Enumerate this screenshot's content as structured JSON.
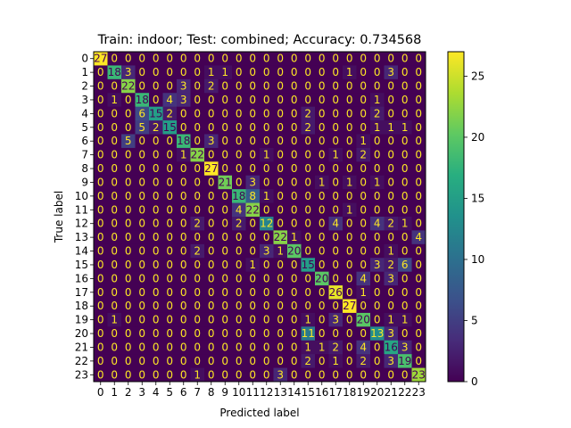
{
  "chart_data": {
    "type": "heatmap",
    "title": "Train: indoor; Test: combined; Accuracy: 0.734568",
    "xlabel": "Predicted label",
    "ylabel": "True label",
    "x_tick_labels": [
      "0",
      "1",
      "2",
      "3",
      "4",
      "5",
      "6",
      "7",
      "8",
      "9",
      "10",
      "11",
      "12",
      "13",
      "14",
      "15",
      "16",
      "17",
      "18",
      "19",
      "20",
      "21",
      "22",
      "23"
    ],
    "y_tick_labels": [
      "0",
      "1",
      "2",
      "3",
      "4",
      "5",
      "6",
      "7",
      "8",
      "9",
      "10",
      "11",
      "12",
      "13",
      "14",
      "15",
      "16",
      "17",
      "18",
      "19",
      "20",
      "21",
      "22",
      "23"
    ],
    "colormap": "viridis",
    "colorbar": {
      "min": 0,
      "max": 27,
      "ticks": [
        0,
        5,
        10,
        15,
        20,
        25
      ]
    },
    "matrix": [
      [
        27,
        0,
        0,
        0,
        0,
        0,
        0,
        0,
        0,
        0,
        0,
        0,
        0,
        0,
        0,
        0,
        0,
        0,
        0,
        0,
        0,
        0,
        0,
        0
      ],
      [
        0,
        18,
        3,
        0,
        0,
        0,
        0,
        0,
        1,
        1,
        0,
        0,
        0,
        0,
        0,
        0,
        0,
        0,
        1,
        0,
        0,
        3,
        0,
        0
      ],
      [
        0,
        0,
        22,
        0,
        0,
        0,
        3,
        0,
        2,
        0,
        0,
        0,
        0,
        0,
        0,
        0,
        0,
        0,
        0,
        0,
        0,
        0,
        0,
        0
      ],
      [
        0,
        1,
        0,
        18,
        0,
        4,
        3,
        0,
        0,
        0,
        0,
        0,
        0,
        0,
        0,
        0,
        0,
        0,
        0,
        0,
        1,
        0,
        0,
        0
      ],
      [
        0,
        0,
        0,
        6,
        15,
        2,
        0,
        0,
        0,
        0,
        0,
        0,
        0,
        0,
        0,
        2,
        0,
        0,
        0,
        0,
        2,
        0,
        0,
        0
      ],
      [
        0,
        0,
        0,
        5,
        2,
        15,
        0,
        0,
        0,
        0,
        0,
        0,
        0,
        0,
        0,
        2,
        0,
        0,
        0,
        0,
        1,
        1,
        1,
        0
      ],
      [
        0,
        0,
        5,
        0,
        0,
        0,
        18,
        0,
        3,
        0,
        0,
        0,
        0,
        0,
        0,
        0,
        0,
        0,
        0,
        1,
        0,
        0,
        0,
        0
      ],
      [
        0,
        0,
        0,
        0,
        0,
        0,
        1,
        22,
        0,
        0,
        0,
        0,
        1,
        0,
        0,
        0,
        0,
        1,
        0,
        2,
        0,
        0,
        0,
        0
      ],
      [
        0,
        0,
        0,
        0,
        0,
        0,
        0,
        0,
        27,
        0,
        0,
        0,
        0,
        0,
        0,
        0,
        0,
        0,
        0,
        0,
        0,
        0,
        0,
        0
      ],
      [
        0,
        0,
        0,
        0,
        0,
        0,
        0,
        0,
        0,
        21,
        0,
        3,
        0,
        0,
        0,
        0,
        1,
        0,
        1,
        0,
        1,
        0,
        0,
        0
      ],
      [
        0,
        0,
        0,
        0,
        0,
        0,
        0,
        0,
        0,
        0,
        18,
        8,
        1,
        0,
        0,
        0,
        0,
        0,
        0,
        0,
        0,
        0,
        0,
        0
      ],
      [
        0,
        0,
        0,
        0,
        0,
        0,
        0,
        0,
        0,
        0,
        4,
        22,
        0,
        0,
        0,
        0,
        0,
        0,
        1,
        0,
        0,
        0,
        0,
        0
      ],
      [
        0,
        0,
        0,
        0,
        0,
        0,
        0,
        2,
        0,
        0,
        2,
        0,
        12,
        0,
        0,
        0,
        0,
        4,
        0,
        0,
        4,
        2,
        1,
        0
      ],
      [
        0,
        0,
        0,
        0,
        0,
        0,
        0,
        0,
        0,
        0,
        0,
        0,
        0,
        22,
        1,
        0,
        0,
        0,
        0,
        0,
        0,
        0,
        0,
        4
      ],
      [
        0,
        0,
        0,
        0,
        0,
        0,
        0,
        2,
        0,
        0,
        0,
        0,
        3,
        1,
        20,
        0,
        0,
        0,
        0,
        0,
        0,
        1,
        0,
        0
      ],
      [
        0,
        0,
        0,
        0,
        0,
        0,
        0,
        0,
        0,
        0,
        0,
        1,
        0,
        0,
        0,
        15,
        0,
        0,
        0,
        0,
        3,
        2,
        6,
        0
      ],
      [
        0,
        0,
        0,
        0,
        0,
        0,
        0,
        0,
        0,
        0,
        0,
        0,
        0,
        0,
        0,
        0,
        20,
        0,
        0,
        4,
        0,
        3,
        0,
        0
      ],
      [
        0,
        0,
        0,
        0,
        0,
        0,
        0,
        0,
        0,
        0,
        0,
        0,
        0,
        0,
        0,
        0,
        0,
        26,
        0,
        1,
        0,
        0,
        0,
        0
      ],
      [
        0,
        0,
        0,
        0,
        0,
        0,
        0,
        0,
        0,
        0,
        0,
        0,
        0,
        0,
        0,
        0,
        0,
        0,
        27,
        0,
        0,
        0,
        0,
        0
      ],
      [
        0,
        1,
        0,
        0,
        0,
        0,
        0,
        0,
        0,
        0,
        0,
        0,
        0,
        0,
        0,
        1,
        0,
        3,
        0,
        20,
        0,
        1,
        1,
        0
      ],
      [
        0,
        0,
        0,
        0,
        0,
        0,
        0,
        0,
        0,
        0,
        0,
        0,
        0,
        0,
        0,
        11,
        0,
        0,
        0,
        0,
        13,
        3,
        0,
        0
      ],
      [
        0,
        0,
        0,
        0,
        0,
        0,
        0,
        0,
        0,
        0,
        0,
        0,
        0,
        0,
        0,
        1,
        1,
        2,
        0,
        4,
        0,
        16,
        3,
        0
      ],
      [
        0,
        0,
        0,
        0,
        0,
        0,
        0,
        0,
        0,
        0,
        0,
        0,
        0,
        0,
        0,
        2,
        0,
        1,
        0,
        2,
        0,
        3,
        19,
        0
      ],
      [
        0,
        0,
        0,
        0,
        0,
        0,
        0,
        1,
        0,
        0,
        0,
        0,
        0,
        3,
        0,
        0,
        0,
        0,
        0,
        0,
        0,
        0,
        0,
        23
      ]
    ]
  }
}
